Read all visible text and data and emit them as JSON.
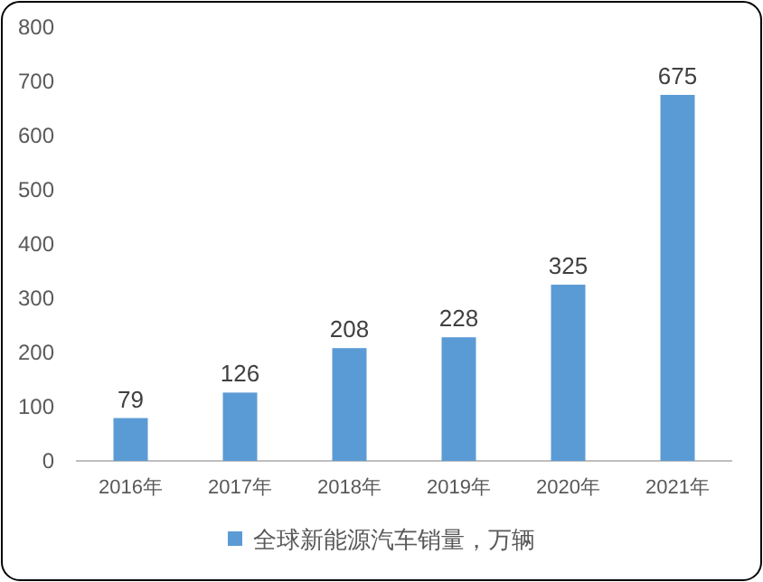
{
  "chart_data": {
    "type": "bar",
    "categories": [
      "2016年",
      "2017年",
      "2018年",
      "2019年",
      "2020年",
      "2021年"
    ],
    "series": [
      {
        "name": "全球新能源汽车销量，万辆",
        "color": "#5b9bd5",
        "values": [
          79,
          126,
          208,
          228,
          325,
          675
        ]
      }
    ],
    "ylim": [
      0,
      800
    ],
    "yticks": [
      0,
      100,
      200,
      300,
      400,
      500,
      600,
      700,
      800
    ],
    "grid": false,
    "legend": "bottom",
    "data_labels": true
  }
}
